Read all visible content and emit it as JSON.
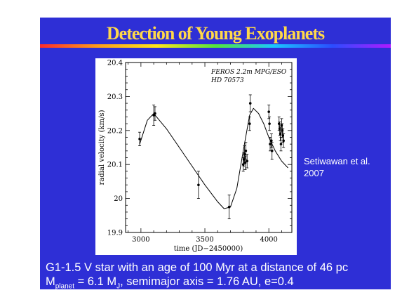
{
  "title": "Detection of Young Exoplanets",
  "credit": [
    "Setiwawan et al.",
    "2007"
  ],
  "caption_line1": "G1-1.5 V star with an age of 100 Myr at a distance of 46 pc",
  "caption_line2": {
    "m": "M",
    "m_sub": "planet",
    "m_val": " = 6.1 M",
    "mj_sub": "J",
    "rest": ", semimajor axis = 1.76 AU, e=0.4"
  },
  "colors": {
    "background": "#2e2fd6",
    "title": "#ffd84a",
    "text": "#ffffff"
  },
  "chart_data": {
    "type": "scatter",
    "annotation": [
      "FEROS 2.2m MPG/ESO",
      "HD 70573"
    ],
    "xlabel": "time (JD−2450000)",
    "ylabel": "radial velocity (km/s)",
    "xlim": [
      2880,
      4180
    ],
    "ylim": [
      19.9,
      20.4
    ],
    "xticks": [
      3000,
      3500,
      4000
    ],
    "yticks": [
      19.9,
      20,
      20.1,
      20.2,
      20.3,
      20.4
    ],
    "ytick_labels": [
      "19.9",
      "20",
      "20.1",
      "20.2",
      "20.3",
      "20.4"
    ],
    "points": [
      {
        "x": 2990,
        "y": 20.175,
        "err": 0.02
      },
      {
        "x": 3100,
        "y": 20.245,
        "err": 0.03
      },
      {
        "x": 3110,
        "y": 20.25,
        "err": 0.02
      },
      {
        "x": 3450,
        "y": 20.04,
        "err": 0.04
      },
      {
        "x": 3690,
        "y": 19.975,
        "err": 0.035
      },
      {
        "x": 3800,
        "y": 20.1,
        "err": 0.02
      },
      {
        "x": 3805,
        "y": 20.115,
        "err": 0.02
      },
      {
        "x": 3810,
        "y": 20.13,
        "err": 0.025
      },
      {
        "x": 3815,
        "y": 20.105,
        "err": 0.02
      },
      {
        "x": 3820,
        "y": 20.14,
        "err": 0.025
      },
      {
        "x": 3830,
        "y": 20.11,
        "err": 0.02
      },
      {
        "x": 3850,
        "y": 20.22,
        "err": 0.02
      },
      {
        "x": 3855,
        "y": 20.28,
        "err": 0.025
      },
      {
        "x": 4000,
        "y": 20.255,
        "err": 0.02
      },
      {
        "x": 4005,
        "y": 20.22,
        "err": 0.02
      },
      {
        "x": 4010,
        "y": 20.16,
        "err": 0.02
      },
      {
        "x": 4020,
        "y": 20.17,
        "err": 0.02
      },
      {
        "x": 4025,
        "y": 20.14,
        "err": 0.025
      },
      {
        "x": 4080,
        "y": 20.22,
        "err": 0.02
      },
      {
        "x": 4085,
        "y": 20.205,
        "err": 0.02
      },
      {
        "x": 4090,
        "y": 20.19,
        "err": 0.02
      },
      {
        "x": 4095,
        "y": 20.16,
        "err": 0.02
      },
      {
        "x": 4100,
        "y": 20.215,
        "err": 0.02
      },
      {
        "x": 4105,
        "y": 20.2,
        "err": 0.02
      },
      {
        "x": 4110,
        "y": 20.185,
        "err": 0.02
      },
      {
        "x": 4115,
        "y": 20.17,
        "err": 0.02
      }
    ],
    "fit_curve": {
      "x": [
        2990,
        3050,
        3100,
        3200,
        3300,
        3400,
        3500,
        3600,
        3650,
        3700,
        3750,
        3800,
        3850,
        3880,
        3920,
        3960,
        4000,
        4050,
        4100,
        4150
      ],
      "y": [
        20.16,
        20.23,
        20.25,
        20.205,
        20.15,
        20.095,
        20.04,
        19.99,
        19.97,
        19.975,
        20.03,
        20.14,
        20.245,
        20.265,
        20.25,
        20.22,
        20.18,
        20.14,
        20.11,
        20.09
      ]
    }
  }
}
